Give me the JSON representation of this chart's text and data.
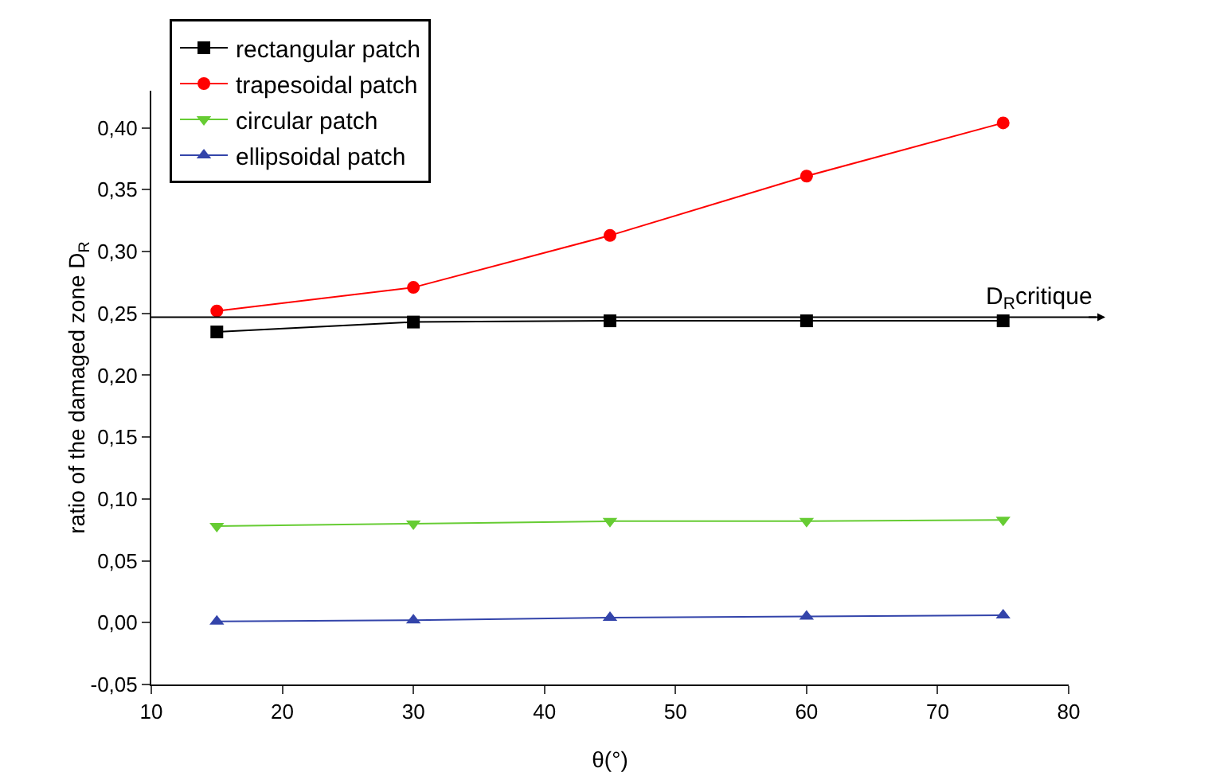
{
  "chart_data": {
    "type": "line",
    "xlabel": "θ(°)",
    "ylabel": "ratio of the damaged zone D$_{R}$",
    "x": [
      15,
      30,
      45,
      60,
      75
    ],
    "series": [
      {
        "name": "rectangular patch",
        "color": "#000000",
        "marker": "square",
        "values": [
          0.235,
          0.243,
          0.244,
          0.244,
          0.244
        ]
      },
      {
        "name": "trapesoidal patch",
        "color": "#ff0000",
        "marker": "circle",
        "values": [
          0.252,
          0.271,
          0.313,
          0.361,
          0.404
        ]
      },
      {
        "name": "circular patch",
        "color": "#66cc33",
        "marker": "triangle-down",
        "values": [
          0.078,
          0.08,
          0.082,
          0.082,
          0.083
        ]
      },
      {
        "name": "ellipsoidal patch",
        "color": "#3344aa",
        "marker": "triangle",
        "values": [
          0.001,
          0.002,
          0.004,
          0.005,
          0.006
        ]
      }
    ],
    "ref_lines": [
      {
        "axis": "y",
        "value": 0.247,
        "label": "D$_{R}$critique",
        "color": "#000000",
        "line_style": "solid"
      }
    ],
    "xlim": [
      10,
      80
    ],
    "xticks": [
      10,
      20,
      30,
      40,
      50,
      60,
      70,
      80
    ],
    "ylim": [
      -0.05,
      0.43
    ],
    "yticks": [
      {
        "value": -0.05,
        "label": "-0,05"
      },
      {
        "value": 0,
        "label": "0,00"
      },
      {
        "value": 0.05,
        "label": "0,05"
      },
      {
        "value": 0.1,
        "label": "0,10"
      },
      {
        "value": 0.15,
        "label": "0,15"
      },
      {
        "value": 0.2,
        "label": "0,20"
      },
      {
        "value": 0.25,
        "label": "0,25"
      },
      {
        "value": 0.3,
        "label": "0,30"
      },
      {
        "value": 0.35,
        "label": "0,35"
      },
      {
        "value": 0.4,
        "label": "0,40"
      }
    ],
    "grid": false,
    "legend": "top left",
    "line_style": "solid"
  }
}
